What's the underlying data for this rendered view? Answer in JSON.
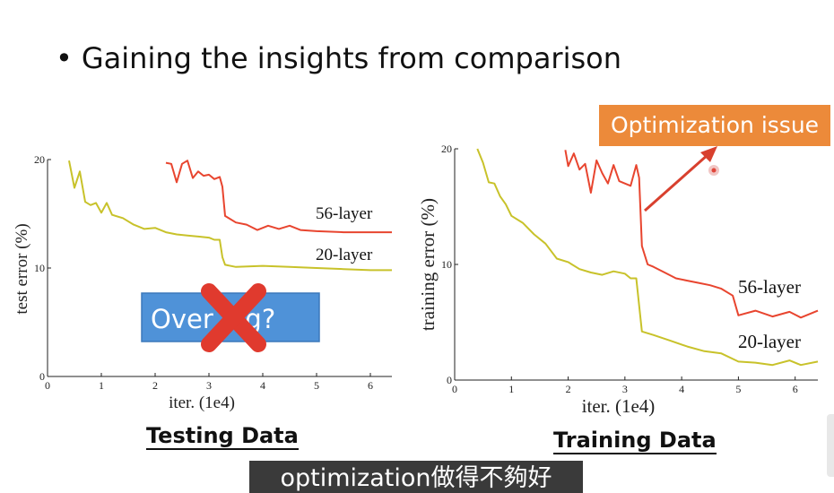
{
  "slide": {
    "bullet": "Gaining the insights from comparison",
    "overfit_label": "Overfitting?",
    "overfit_visible": "Over        ing?",
    "optimization_label": "Optimization issue"
  },
  "captions": {
    "testing": "Testing Data",
    "training": "Training Data"
  },
  "subtitle": "optimization做得不夠好",
  "colors": {
    "series_56": "#e8452f",
    "series_20": "#c8c22a",
    "overfit_box": "#4f92d8",
    "opt_box": "#ec8a3a",
    "x_mark": "#e03a2e"
  },
  "chart_data": [
    {
      "type": "line",
      "xlabel": "iter. (1e4)",
      "ylabel": "test error (%)",
      "xlim": [
        0,
        6.4
      ],
      "ylim": [
        0,
        20
      ],
      "xticks": [
        "0",
        "1",
        "2",
        "3",
        "4",
        "5",
        "6"
      ],
      "yticks": [
        "0",
        "10",
        "20"
      ],
      "series": [
        {
          "name": "56-layer",
          "x": [
            2.2,
            2.3,
            2.4,
            2.5,
            2.6,
            2.7,
            2.8,
            2.9,
            3.0,
            3.1,
            3.2,
            3.25,
            3.3,
            3.5,
            3.7,
            3.9,
            4.1,
            4.3,
            4.5,
            4.7,
            5.0,
            5.5,
            6.0,
            6.4
          ],
          "y": [
            19.7,
            19.6,
            17.9,
            19.6,
            19.9,
            18.3,
            18.9,
            18.5,
            18.6,
            18.2,
            18.4,
            17.5,
            14.8,
            14.2,
            14.0,
            13.5,
            13.9,
            13.6,
            13.9,
            13.5,
            13.4,
            13.3,
            13.3,
            13.3
          ]
        },
        {
          "name": "20-layer",
          "x": [
            0.4,
            0.5,
            0.6,
            0.7,
            0.8,
            0.9,
            1.0,
            1.1,
            1.2,
            1.4,
            1.6,
            1.8,
            2.0,
            2.2,
            2.4,
            2.6,
            2.8,
            3.0,
            3.1,
            3.2,
            3.25,
            3.3,
            3.5,
            4.0,
            4.5,
            5.0,
            5.5,
            6.0,
            6.4
          ],
          "y": [
            19.9,
            17.4,
            18.9,
            16.1,
            15.8,
            16.0,
            15.1,
            16.0,
            14.9,
            14.6,
            14.0,
            13.6,
            13.7,
            13.3,
            13.1,
            13.0,
            12.9,
            12.8,
            12.6,
            12.6,
            11.0,
            10.3,
            10.1,
            10.2,
            10.1,
            10.0,
            9.9,
            9.8,
            9.8
          ]
        }
      ]
    },
    {
      "type": "line",
      "xlabel": "iter. (1e4)",
      "ylabel": "training error (%)",
      "xlim": [
        0,
        6.4
      ],
      "ylim": [
        0,
        20
      ],
      "xticks": [
        "0",
        "1",
        "2",
        "3",
        "4",
        "5",
        "6"
      ],
      "yticks": [
        "0",
        "10",
        "20"
      ],
      "series": [
        {
          "name": "56-layer",
          "x": [
            1.95,
            2.0,
            2.1,
            2.2,
            2.3,
            2.4,
            2.5,
            2.6,
            2.7,
            2.8,
            2.9,
            3.0,
            3.1,
            3.2,
            3.25,
            3.3,
            3.4,
            3.5,
            3.7,
            3.9,
            4.1,
            4.3,
            4.5,
            4.7,
            4.9,
            5.0,
            5.3,
            5.6,
            5.9,
            6.1,
            6.4
          ],
          "y": [
            19.9,
            18.5,
            19.6,
            18.2,
            18.7,
            16.2,
            19.0,
            17.9,
            17.0,
            18.6,
            17.2,
            17.0,
            16.8,
            18.6,
            17.5,
            11.6,
            10.0,
            9.8,
            9.3,
            8.8,
            8.6,
            8.4,
            8.2,
            7.9,
            7.3,
            5.6,
            6.0,
            5.5,
            5.9,
            5.4,
            6.0
          ]
        },
        {
          "name": "20-layer",
          "x": [
            0.4,
            0.5,
            0.6,
            0.7,
            0.8,
            0.9,
            1.0,
            1.2,
            1.4,
            1.6,
            1.8,
            2.0,
            2.2,
            2.4,
            2.6,
            2.8,
            3.0,
            3.1,
            3.2,
            3.3,
            3.5,
            3.8,
            4.1,
            4.4,
            4.7,
            5.0,
            5.3,
            5.6,
            5.9,
            6.1,
            6.4
          ],
          "y": [
            20.0,
            18.8,
            17.1,
            17.0,
            15.9,
            15.2,
            14.2,
            13.6,
            12.6,
            11.8,
            10.5,
            10.2,
            9.6,
            9.3,
            9.1,
            9.4,
            9.2,
            8.8,
            8.8,
            4.2,
            3.9,
            3.4,
            2.9,
            2.5,
            2.3,
            1.6,
            1.5,
            1.3,
            1.7,
            1.3,
            1.6
          ]
        }
      ]
    }
  ]
}
